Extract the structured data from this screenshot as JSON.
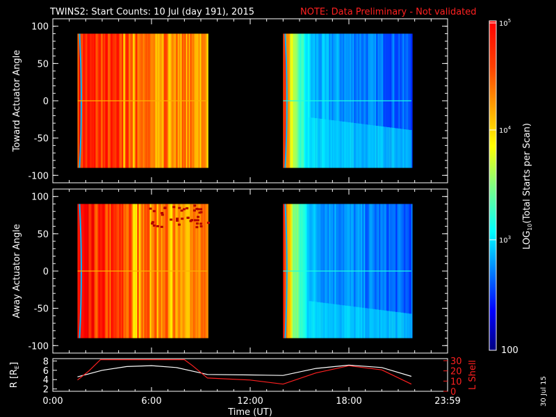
{
  "header": {
    "title": "TWINS2: Start Counts: 10 Jul (day 191), 2015",
    "note": "NOTE: Data Preliminary - Not validated"
  },
  "date_stamp": "30 Jul 15",
  "colors": {
    "note": "#ff2020",
    "r_line": "#ffffff",
    "l_line": "#ff2020"
  },
  "chart_data": [
    {
      "type": "heatmap",
      "panel": "toward",
      "ylabel": "Toward Actuator Angle",
      "ylim": [
        -110,
        110
      ],
      "yticks": [
        "100",
        "50",
        "0",
        "-50",
        "-100"
      ],
      "ytick_values": [
        100,
        50,
        0,
        -50,
        -100
      ],
      "xlim": [
        0,
        24
      ],
      "blocks": [
        {
          "x_start": 1.5,
          "x_end": 9.4,
          "y_range": [
            -90,
            90
          ],
          "level": "high"
        },
        {
          "x_start": 14.0,
          "x_end": 21.8,
          "y_range": [
            -90,
            90
          ],
          "level": "low"
        }
      ]
    },
    {
      "type": "heatmap",
      "panel": "away",
      "ylabel": "Away Actuator Angle",
      "ylim": [
        -110,
        110
      ],
      "yticks": [
        "100",
        "50",
        "0",
        "-50",
        "-100"
      ],
      "ytick_values": [
        100,
        50,
        0,
        -50,
        -100
      ],
      "xlim": [
        0,
        24
      ],
      "blocks": [
        {
          "x_start": 1.5,
          "x_end": 9.4,
          "y_range": [
            -90,
            90
          ],
          "level": "high"
        },
        {
          "x_start": 14.0,
          "x_end": 21.8,
          "y_range": [
            -90,
            90
          ],
          "level": "low"
        }
      ]
    },
    {
      "type": "line",
      "panel": "ephemeris",
      "xlabel": "Time (UT)",
      "xticks": [
        "0:00",
        "6:00",
        "12:00",
        "18:00",
        "23:59"
      ],
      "xtick_values": [
        0,
        6,
        12,
        18,
        24
      ],
      "xlim": [
        0,
        24
      ],
      "ylabel_left": "R [R",
      "ylabel_left_sub": "E",
      "ylabel_left_end": "]",
      "ylim_left": [
        1.5,
        8.5
      ],
      "yticks_left": [
        "8",
        "6",
        "4",
        "2"
      ],
      "ytick_values_left": [
        8,
        6,
        4,
        2
      ],
      "ylabel_right": "L Shell",
      "ylim_right": [
        0,
        32
      ],
      "yticks_right": [
        "30",
        "20",
        "10",
        "0"
      ],
      "ytick_values_right": [
        30,
        20,
        10,
        0
      ],
      "series": [
        {
          "axis": "left",
          "x": [
            1.5,
            3,
            4.5,
            6,
            7.5,
            9.4,
            12,
            14,
            16,
            18,
            20,
            21.8
          ],
          "values": [
            4.6,
            6.0,
            6.8,
            7.0,
            6.6,
            5.1,
            5.0,
            4.9,
            6.4,
            7.1,
            6.6,
            4.7
          ]
        },
        {
          "axis": "right",
          "x": [
            1.5,
            2.2,
            2.9,
            8.0,
            8.5,
            9.4,
            12,
            14,
            16,
            18,
            20,
            21.8
          ],
          "values": [
            11,
            20,
            31,
            31,
            25,
            13,
            11,
            7,
            18,
            25,
            21,
            7
          ]
        }
      ]
    }
  ],
  "colorbar": {
    "label_prefix": "LOG",
    "label_sub": "10",
    "label_suffix": "(Total Starts per Scan)",
    "ticks": [
      {
        "base": "10",
        "exp": "5"
      },
      {
        "base": "10",
        "exp": "4"
      },
      {
        "base": "10",
        "exp": "3"
      }
    ],
    "bottom_label": "100"
  }
}
